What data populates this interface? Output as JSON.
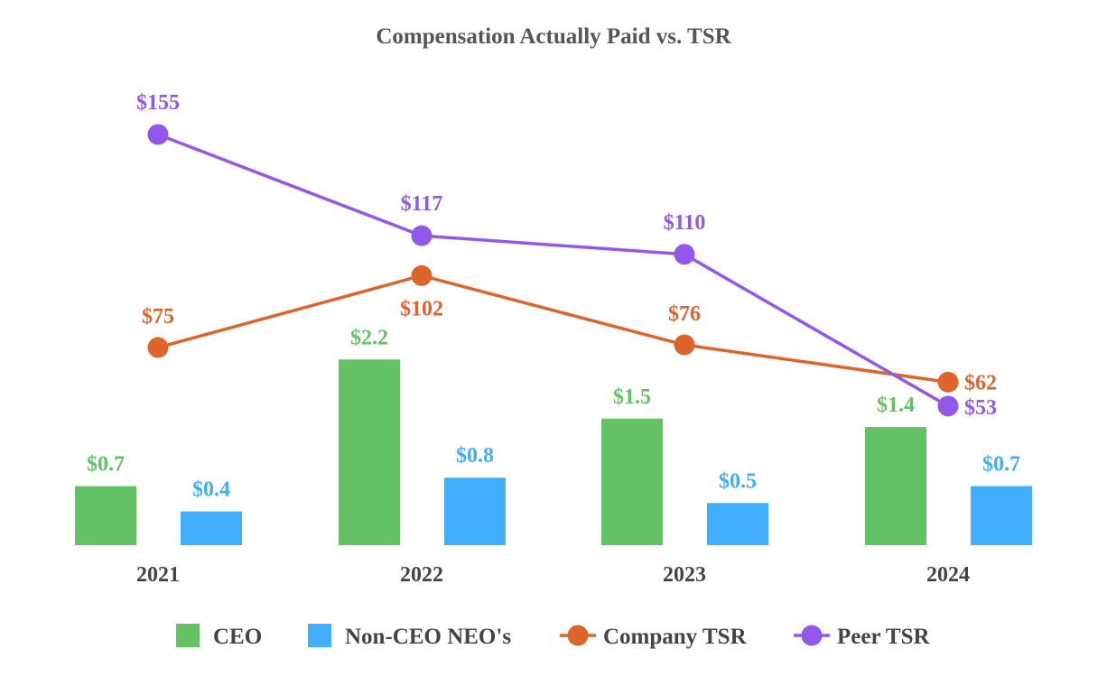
{
  "chart_data": {
    "type": "bar+line",
    "title": "Compensation Actually Paid vs. TSR",
    "categories": [
      "2021",
      "2022",
      "2023",
      "2024"
    ],
    "bar_series": [
      {
        "name": "CEO",
        "color": "#62c264",
        "values": [
          0.7,
          2.2,
          1.5,
          1.4
        ],
        "labels": [
          "$0.7",
          "$2.2",
          "$1.5",
          "$1.4"
        ]
      },
      {
        "name": "Non-CEO NEO's",
        "color": "#40aefc",
        "values": [
          0.4,
          0.8,
          0.5,
          0.7
        ],
        "labels": [
          "$0.4",
          "$0.8",
          "$0.5",
          "$0.7"
        ]
      }
    ],
    "line_series": [
      {
        "name": "Company TSR",
        "color": "#dd652c",
        "values": [
          75,
          102,
          76,
          62
        ],
        "labels": [
          "$75",
          "$102",
          "$76",
          "$62"
        ]
      },
      {
        "name": "Peer TSR",
        "color": "#9357ea",
        "values": [
          155,
          117,
          110,
          53
        ],
        "labels": [
          "$155",
          "$117",
          "$110",
          "$53"
        ]
      }
    ],
    "legend": [
      "CEO",
      "Non-CEO NEO's",
      "Company TSR",
      "Peer TSR"
    ],
    "legend_position": "bottom",
    "grid": false
  }
}
